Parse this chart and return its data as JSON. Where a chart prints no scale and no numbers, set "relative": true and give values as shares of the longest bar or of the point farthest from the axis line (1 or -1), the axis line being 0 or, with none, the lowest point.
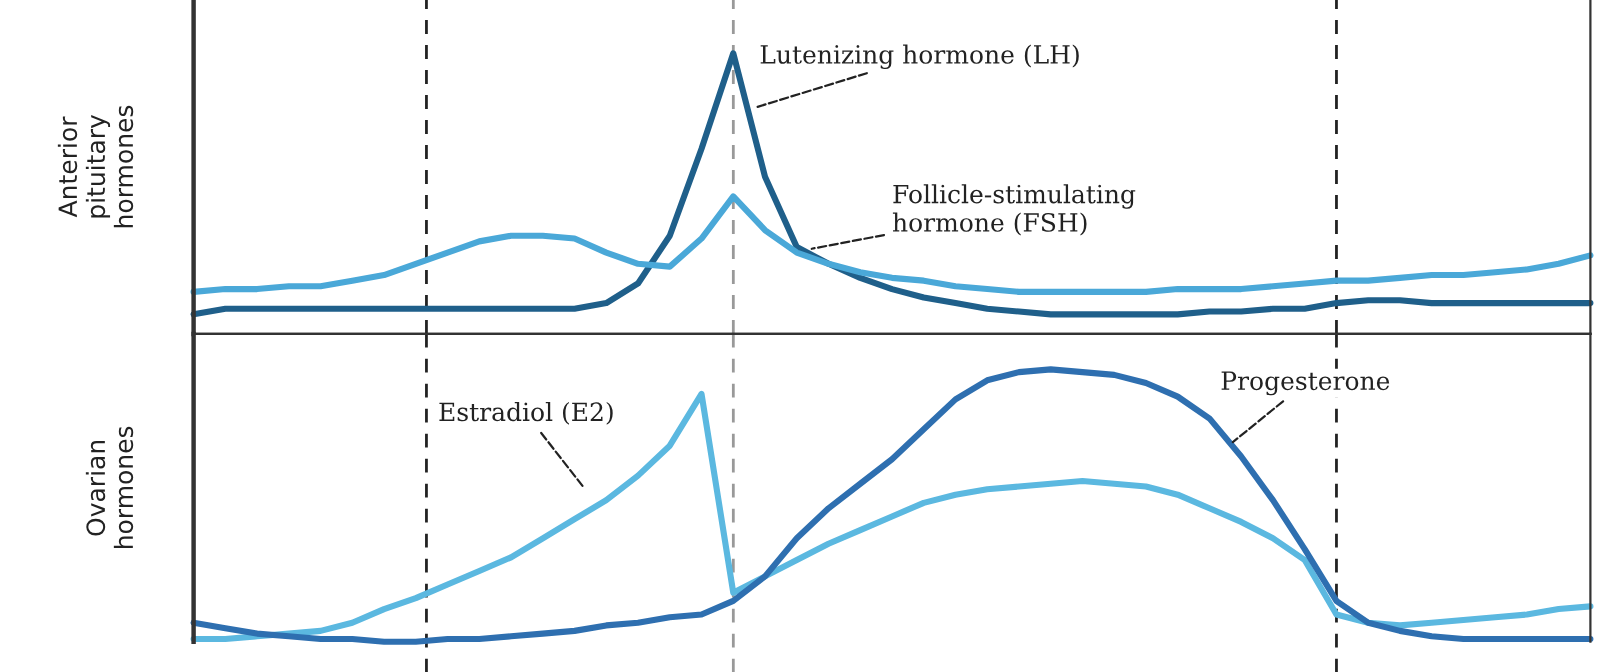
{
  "chart_data": [
    {
      "type": "line",
      "ylabel": "Anterior\npituitary\nhormones",
      "relative": true,
      "tick_labels": false,
      "line_style": "solid",
      "categories": [
        null,
        null,
        null,
        null,
        null,
        null,
        null,
        null,
        null,
        null,
        null,
        null,
        null,
        null,
        null,
        null,
        null,
        null,
        null,
        null,
        null,
        null,
        null,
        null,
        null,
        null,
        null,
        null,
        null,
        null,
        null,
        null,
        null,
        null,
        null,
        null,
        null,
        null,
        null,
        null,
        null,
        null,
        null,
        null,
        null
      ],
      "series": [
        {
          "name": "Lutenizing hormone (LH)",
          "color": "#1f5f8a",
          "values": [
            0.07,
            0.09,
            0.09,
            0.09,
            0.09,
            0.09,
            0.09,
            0.09,
            0.09,
            0.09,
            0.09,
            0.09,
            0.09,
            0.11,
            0.18,
            0.35,
            0.66,
            1,
            0.56,
            0.31,
            0.25,
            0.2,
            0.16,
            0.13,
            0.11,
            0.09,
            0.08,
            0.07,
            0.07,
            0.07,
            0.07,
            0.07,
            0.08,
            0.08,
            0.09,
            0.09,
            0.11,
            0.12,
            0.12,
            0.11,
            0.11,
            0.11,
            0.11,
            0.11,
            0.11
          ]
        },
        {
          "name": "Follicle-stimulating\nhormone (FSH)",
          "color": "#4aa8d8",
          "values": [
            0.15,
            0.16,
            0.16,
            0.17,
            0.17,
            0.19,
            0.21,
            0.25,
            0.29,
            0.33,
            0.35,
            0.35,
            0.34,
            0.29,
            0.25,
            0.24,
            0.34,
            0.49,
            0.37,
            0.29,
            0.25,
            0.22,
            0.2,
            0.19,
            0.17,
            0.16,
            0.15,
            0.15,
            0.15,
            0.15,
            0.15,
            0.16,
            0.16,
            0.16,
            0.17,
            0.18,
            0.19,
            0.19,
            0.2,
            0.21,
            0.21,
            0.22,
            0.23,
            0.25,
            0.28
          ]
        }
      ]
    },
    {
      "type": "line",
      "ylabel": "Ovarian\nhormones",
      "relative": true,
      "tick_labels": false,
      "line_style": "solid",
      "categories": [
        null,
        null,
        null,
        null,
        null,
        null,
        null,
        null,
        null,
        null,
        null,
        null,
        null,
        null,
        null,
        null,
        null,
        null,
        null,
        null,
        null,
        null,
        null,
        null,
        null,
        null,
        null,
        null,
        null,
        null,
        null,
        null,
        null,
        null,
        null,
        null,
        null,
        null,
        null,
        null,
        null,
        null,
        null,
        null,
        null
      ],
      "series": [
        {
          "name": "Estradiol (E2)",
          "color": "#5bb8e0",
          "values": [
            0.01,
            0.01,
            0.02,
            0.03,
            0.04,
            0.07,
            0.12,
            0.16,
            0.21,
            0.26,
            0.31,
            0.38,
            0.45,
            0.52,
            0.61,
            0.72,
            0.91,
            0.18,
            0.24,
            0.3,
            0.36,
            0.41,
            0.46,
            0.51,
            0.54,
            0.56,
            0.57,
            0.58,
            0.59,
            0.58,
            0.57,
            0.54,
            0.49,
            0.44,
            0.38,
            0.3,
            0.1,
            0.07,
            0.06,
            0.07,
            0.08,
            0.09,
            0.1,
            0.12,
            0.13
          ]
        },
        {
          "name": "Progesterone",
          "color": "#2e6fb0",
          "values": [
            0.07,
            0.05,
            0.03,
            0.02,
            0.01,
            0.01,
            0,
            0,
            0.01,
            0.01,
            0.02,
            0.03,
            0.04,
            0.06,
            0.07,
            0.09,
            0.1,
            0.15,
            0.24,
            0.38,
            0.49,
            0.58,
            0.67,
            0.78,
            0.89,
            0.96,
            0.99,
            1,
            0.99,
            0.98,
            0.95,
            0.9,
            0.82,
            0.68,
            0.52,
            0.34,
            0.15,
            0.07,
            0.04,
            0.02,
            0.01,
            0.01,
            0.01,
            0.01,
            0.01
          ]
        }
      ]
    }
  ]
}
